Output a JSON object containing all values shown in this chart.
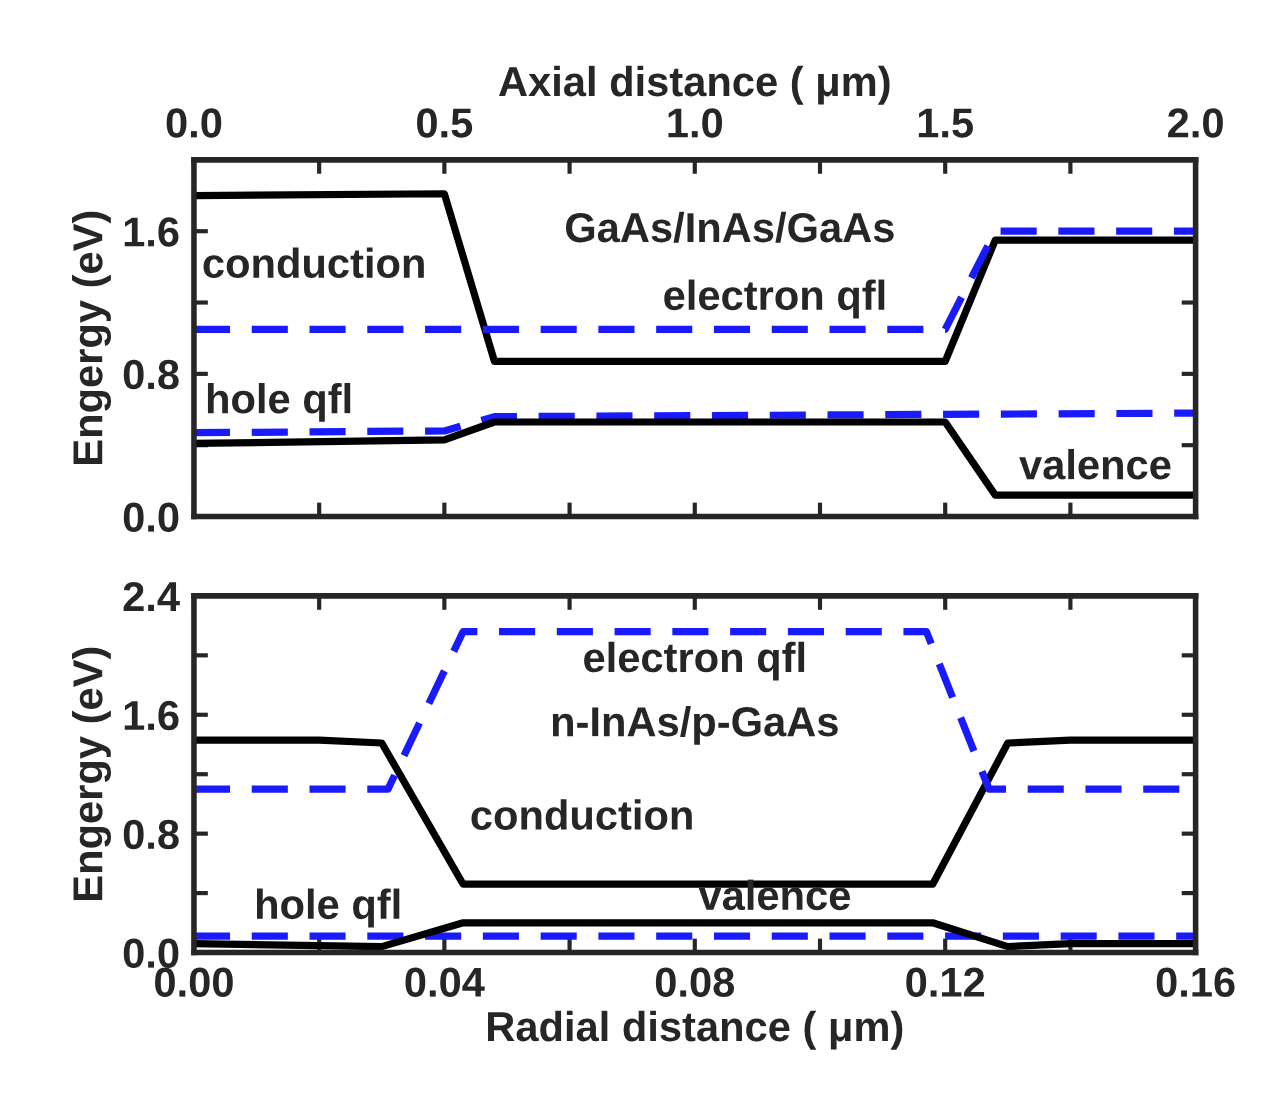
{
  "chart_data": [
    {
      "type": "line",
      "xlabel": "Axial distance ( μm)",
      "ylabel": "Engergy (eV)",
      "xlim": [
        0,
        2.0
      ],
      "xticks": [
        {
          "value": 0,
          "label": "0.0"
        },
        {
          "value": 0.25,
          "label": null
        },
        0.5,
        {
          "value": 0.75,
          "label": null
        },
        {
          "value": 1,
          "label": "1.0"
        },
        {
          "value": 1.25,
          "label": null
        },
        1.5,
        {
          "value": 1.75,
          "label": null
        },
        {
          "value": 2,
          "label": "2.0"
        }
      ],
      "ylim": [
        0,
        2.0
      ],
      "yticks": [
        {
          "value": 0,
          "label": "0.0"
        },
        {
          "value": 0.4,
          "label": null
        },
        {
          "value": 0.8,
          "label": "0.8"
        },
        {
          "value": 1.2,
          "label": null
        },
        {
          "value": 1.6,
          "label": "1.6"
        }
      ],
      "grid": false,
      "legend": false,
      "series": [
        {
          "color": "#000000",
          "line_style": "solid",
          "x": [
            0,
            0.5,
            0.6,
            1.5,
            1.6,
            2.0
          ],
          "values": [
            1.8,
            1.81,
            0.87,
            0.87,
            1.55,
            1.55
          ]
        },
        {
          "color": "#1a1aff",
          "line_style": "dashed",
          "x": [
            0,
            1.5,
            1.6,
            2.0
          ],
          "values": [
            1.05,
            1.05,
            1.6,
            1.6
          ]
        },
        {
          "color": "#1a1aff",
          "line_style": "dashed",
          "x": [
            0,
            0.5,
            0.6,
            2.0
          ],
          "values": [
            0.47,
            0.48,
            0.56,
            0.58
          ]
        },
        {
          "color": "#000000",
          "line_style": "solid",
          "x": [
            0,
            0.5,
            0.6,
            1.5,
            1.6,
            2.0
          ],
          "values": [
            0.41,
            0.43,
            0.53,
            0.53,
            0.12,
            0.12
          ]
        }
      ],
      "annotations": [
        "GaAs/InAs/GaAs",
        "conduction",
        "electron qfl",
        "hole qfl",
        "valence"
      ]
    },
    {
      "type": "line",
      "xlabel": "Radial distance ( μm)",
      "ylabel": "Engergy (eV)",
      "xlim": [
        0,
        0.16
      ],
      "xticks": [
        {
          "value": 0,
          "label": "0.00"
        },
        {
          "value": 0.02,
          "label": null
        },
        0.04,
        {
          "value": 0.06,
          "label": null
        },
        0.08,
        {
          "value": 0.1,
          "label": null
        },
        0.12,
        {
          "value": 0.14,
          "label": null
        },
        0.16
      ],
      "ylim": [
        0,
        2.4
      ],
      "yticks": [
        {
          "value": 0,
          "label": "0.0"
        },
        {
          "value": 0.4,
          "label": null
        },
        {
          "value": 0.8,
          "label": "0.8"
        },
        {
          "value": 1.2,
          "label": null
        },
        {
          "value": 1.6,
          "label": "1.6"
        },
        {
          "value": 2.0,
          "label": null
        },
        2.4
      ],
      "grid": false,
      "legend": false,
      "series": [
        {
          "color": "#000000",
          "line_style": "solid",
          "x": [
            0,
            0.02,
            0.03,
            0.043,
            0.118,
            0.13,
            0.14,
            0.16
          ],
          "values": [
            1.43,
            1.43,
            1.41,
            0.46,
            0.46,
            1.41,
            1.43,
            1.43
          ]
        },
        {
          "color": "#1a1aff",
          "line_style": "dashed",
          "x": [
            0,
            0.031,
            0.043,
            0.117,
            0.127,
            0.16
          ],
          "values": [
            1.1,
            1.1,
            2.16,
            2.16,
            1.1,
            1.1
          ]
        },
        {
          "color": "#1a1aff",
          "line_style": "dashed",
          "x": [
            0,
            0.16
          ],
          "values": [
            0.11,
            0.11
          ]
        },
        {
          "color": "#000000",
          "line_style": "solid",
          "x": [
            0,
            0.03,
            0.043,
            0.118,
            0.13,
            0.14,
            0.16
          ],
          "values": [
            0.06,
            0.04,
            0.2,
            0.2,
            0.04,
            0.06,
            0.06
          ]
        }
      ],
      "annotations": [
        "electron qfl",
        "n-InAs/p-GaAs",
        "conduction",
        "valence",
        "hole qfl"
      ]
    }
  ]
}
